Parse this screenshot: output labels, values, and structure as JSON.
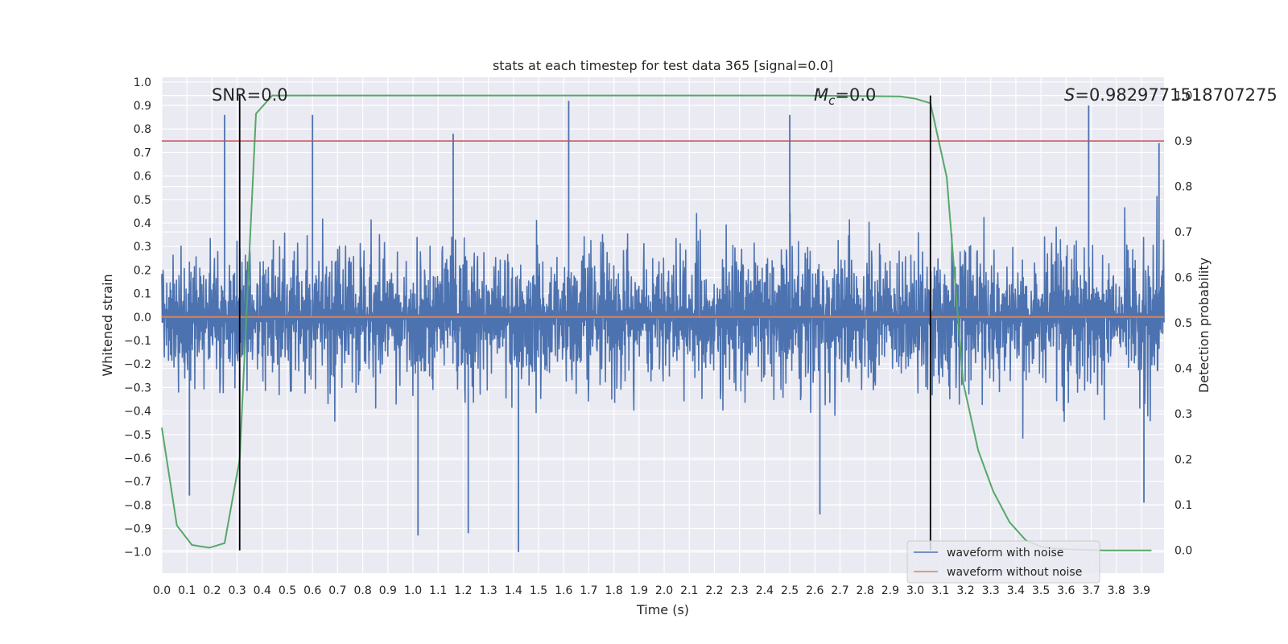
{
  "chart_data": {
    "type": "line",
    "title": "stats at each timestep for test data 365 [signal=0.0]",
    "xlabel": "Time (s)",
    "ylabel": "Whitened strain",
    "y2label": "Detection probability",
    "xlim": [
      0.0,
      3.99
    ],
    "ylim": [
      -1.09,
      1.02
    ],
    "y2lim": [
      -0.05,
      1.04
    ],
    "xticks": [
      "0.0",
      "0.1",
      "0.2",
      "0.3",
      "0.4",
      "0.5",
      "0.6",
      "0.7",
      "0.8",
      "0.9",
      "1.0",
      "1.1",
      "1.2",
      "1.3",
      "1.4",
      "1.5",
      "1.6",
      "1.7",
      "1.8",
      "1.9",
      "2.0",
      "2.1",
      "2.2",
      "2.3",
      "2.4",
      "2.5",
      "2.6",
      "2.7",
      "2.8",
      "2.9",
      "3.0",
      "3.1",
      "3.2",
      "3.3",
      "3.4",
      "3.5",
      "3.6",
      "3.7",
      "3.8",
      "3.9"
    ],
    "yticks": [
      "1.0",
      "0.9",
      "0.8",
      "0.7",
      "0.6",
      "0.5",
      "0.4",
      "0.3",
      "0.2",
      "0.1",
      "0.0",
      "−0.1",
      "−0.2",
      "−0.3",
      "−0.4",
      "−0.5",
      "−0.6",
      "−0.7",
      "−0.8",
      "−0.9",
      "−1.0"
    ],
    "y2ticks": [
      "1.0",
      "0.9",
      "0.8",
      "0.7",
      "0.6",
      "0.5",
      "0.4",
      "0.3",
      "0.2",
      "0.1",
      "0.0"
    ],
    "grid": true,
    "legend_position": "lower-right",
    "annotations": {
      "snr": "SNR=0.0",
      "mc_symbol": "M",
      "mc_sub": "c",
      "mc_value": "=0.0",
      "s_symbol": "S",
      "s_value": "=0.9829771518707275"
    },
    "threshold": {
      "axis": "right",
      "value": 0.9,
      "color": "#c44e52"
    },
    "vertical_markers": [
      0.31,
      3.06
    ],
    "series": [
      {
        "name": "waveform with noise",
        "axis": "left",
        "color": "#4c72b0",
        "description": "dense noisy whitened strain, typical amplitude ±0.45, peaks near ±0.9",
        "notable_peaks": [
          {
            "x": 0.25,
            "y": 0.86
          },
          {
            "x": 0.6,
            "y": 0.86
          },
          {
            "x": 1.16,
            "y": 0.78
          },
          {
            "x": 1.62,
            "y": 0.92
          },
          {
            "x": 2.5,
            "y": 0.86
          },
          {
            "x": 3.69,
            "y": 0.9
          },
          {
            "x": 3.97,
            "y": 0.74
          },
          {
            "x": 1.02,
            "y": -0.93
          },
          {
            "x": 1.22,
            "y": -0.92
          },
          {
            "x": 1.42,
            "y": -1.0
          },
          {
            "x": 2.62,
            "y": -0.84
          },
          {
            "x": 0.11,
            "y": -0.76
          },
          {
            "x": 3.91,
            "y": -0.79
          }
        ]
      },
      {
        "name": "waveform without noise",
        "axis": "left",
        "color": "#dd8452",
        "x": [
          0.0,
          3.99
        ],
        "y": [
          0.0,
          0.0
        ]
      },
      {
        "name": "detection probability",
        "axis": "right",
        "color": "#55a868",
        "x": [
          0.0,
          0.06,
          0.12,
          0.19,
          0.25,
          0.31,
          0.375,
          0.44,
          0.5,
          1.0,
          1.5,
          2.0,
          2.5,
          2.94,
          3.0,
          3.06,
          3.125,
          3.19,
          3.25,
          3.31,
          3.375,
          3.44,
          3.5,
          3.56,
          3.625,
          3.69,
          3.75,
          3.81,
          3.875,
          3.94
        ],
        "y": [
          0.27,
          0.055,
          0.012,
          0.006,
          0.016,
          0.2,
          0.96,
          1.0,
          1.0,
          1.0,
          1.0,
          1.0,
          1.0,
          0.998,
          0.993,
          0.983,
          0.82,
          0.37,
          0.22,
          0.13,
          0.062,
          0.022,
          0.008,
          0.004,
          0.002,
          0.001,
          0.0,
          0.0,
          0.0,
          0.0
        ]
      }
    ]
  }
}
